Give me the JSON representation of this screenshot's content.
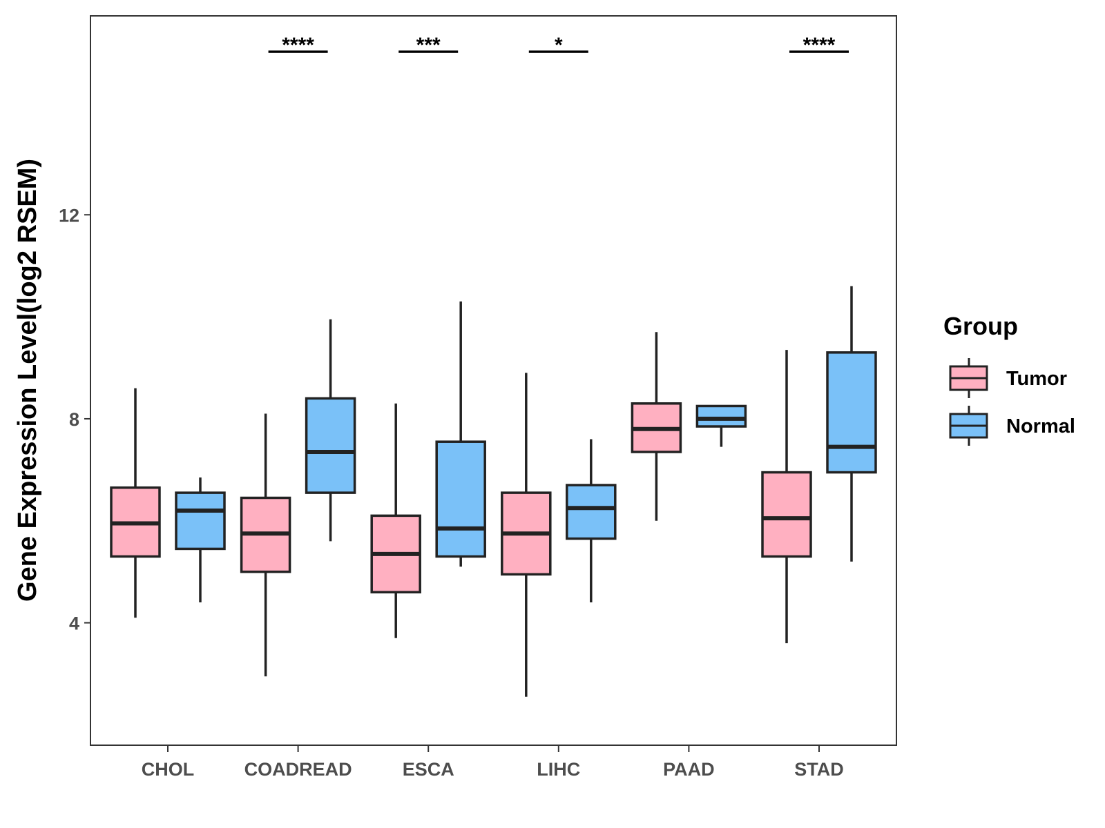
{
  "chart_data": {
    "type": "boxplot",
    "title": "",
    "xlabel": "",
    "ylabel": "Gene Expression Level(log2 RSEM)",
    "ylim": [
      1.6,
      15.9
    ],
    "yticks": [
      4,
      8,
      12
    ],
    "categories": [
      "CHOL",
      "COADREAD",
      "ESCA",
      "LIHC",
      "PAAD",
      "STAD"
    ],
    "legend": {
      "title": "Group",
      "position": "right",
      "entries": [
        {
          "name": "Tumor",
          "color": "#FFB0C1"
        },
        {
          "name": "Normal",
          "color": "#7AC1F8"
        }
      ]
    },
    "series": [
      {
        "name": "Tumor",
        "color": "#FFB0C1",
        "boxes": [
          {
            "category": "CHOL",
            "whisker_low": 4.1,
            "q1": 5.3,
            "median": 5.95,
            "q3": 6.65,
            "whisker_high": 8.6
          },
          {
            "category": "COADREAD",
            "whisker_low": 2.95,
            "q1": 5.0,
            "median": 5.75,
            "q3": 6.45,
            "whisker_high": 8.1
          },
          {
            "category": "ESCA",
            "whisker_low": 3.7,
            "q1": 4.6,
            "median": 5.35,
            "q3": 6.1,
            "whisker_high": 8.3
          },
          {
            "category": "LIHC",
            "whisker_low": 2.55,
            "q1": 4.95,
            "median": 5.75,
            "q3": 6.55,
            "whisker_high": 8.9
          },
          {
            "category": "PAAD",
            "whisker_low": 6.0,
            "q1": 7.35,
            "median": 7.8,
            "q3": 8.3,
            "whisker_high": 9.7
          },
          {
            "category": "STAD",
            "whisker_low": 3.6,
            "q1": 5.3,
            "median": 6.05,
            "q3": 6.95,
            "whisker_high": 9.35
          }
        ]
      },
      {
        "name": "Normal",
        "color": "#7AC1F8",
        "boxes": [
          {
            "category": "CHOL",
            "whisker_low": 4.4,
            "q1": 5.45,
            "median": 6.2,
            "q3": 6.55,
            "whisker_high": 6.85
          },
          {
            "category": "COADREAD",
            "whisker_low": 5.6,
            "q1": 6.55,
            "median": 7.35,
            "q3": 8.4,
            "whisker_high": 9.95
          },
          {
            "category": "ESCA",
            "whisker_low": 5.1,
            "q1": 5.3,
            "median": 5.85,
            "q3": 7.55,
            "whisker_high": 10.3
          },
          {
            "category": "LIHC",
            "whisker_low": 4.4,
            "q1": 5.65,
            "median": 6.25,
            "q3": 6.7,
            "whisker_high": 7.6
          },
          {
            "category": "PAAD",
            "whisker_low": 7.45,
            "q1": 7.85,
            "median": 8.0,
            "q3": 8.25,
            "whisker_high": 8.25
          },
          {
            "category": "STAD",
            "whisker_low": 5.2,
            "q1": 6.95,
            "median": 7.45,
            "q3": 9.3,
            "whisker_high": 10.6
          }
        ]
      }
    ],
    "significance": [
      {
        "category": "COADREAD",
        "label": "****"
      },
      {
        "category": "ESCA",
        "label": "***"
      },
      {
        "category": "LIHC",
        "label": "*"
      },
      {
        "category": "STAD",
        "label": "****"
      }
    ]
  }
}
